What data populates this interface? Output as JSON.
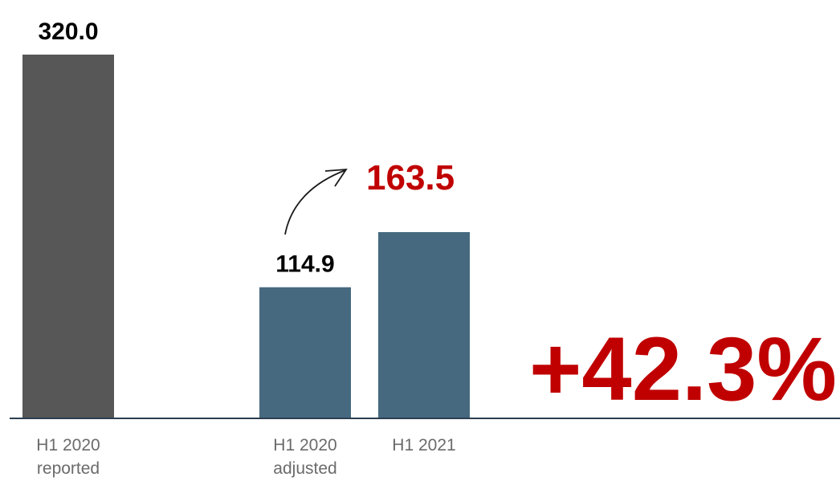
{
  "chart_data": {
    "type": "bar",
    "categories": [
      [
        "H1 2020",
        "reported"
      ],
      [
        "H1 2020",
        "adjusted"
      ],
      [
        "H1 2021"
      ]
    ],
    "values": [
      320.0,
      114.9,
      163.5
    ],
    "value_labels": [
      "320.0",
      "114.9",
      "163.5"
    ],
    "bar_colors": [
      "#575757",
      "#46697f",
      "#46697f"
    ],
    "label_colors": [
      "#000000",
      "#000000",
      "#c00000"
    ],
    "ylim": [
      0,
      320
    ],
    "grid": false,
    "annotation": {
      "text": "+42.3%",
      "color": "#c00000",
      "arrow_from_bar": 1,
      "arrow_to_bar": 2
    }
  }
}
